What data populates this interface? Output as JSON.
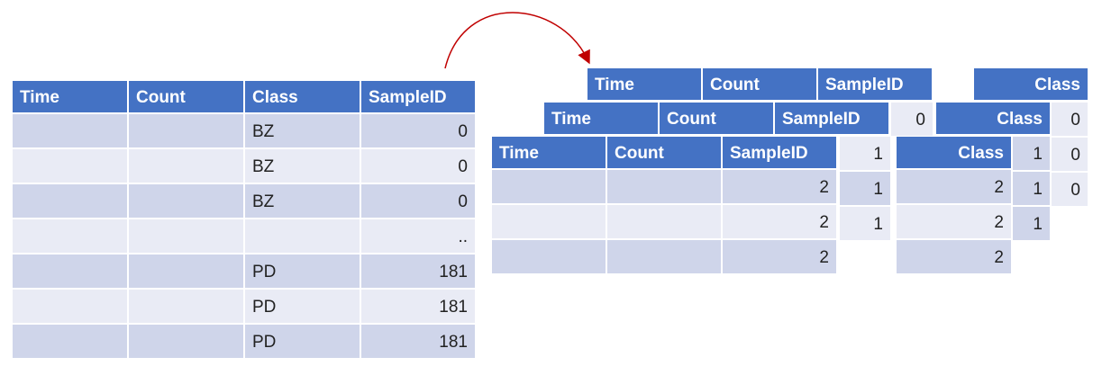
{
  "left_table": {
    "headers": [
      "Time",
      "Count",
      "Class",
      "SampleID"
    ],
    "rows": [
      [
        "",
        "",
        "BZ",
        "0"
      ],
      [
        "",
        "",
        "BZ",
        "0"
      ],
      [
        "",
        "",
        "BZ",
        "0"
      ],
      [
        "",
        "",
        "",
        ".."
      ],
      [
        "",
        "",
        "PD",
        "181"
      ],
      [
        "",
        "",
        "PD",
        "181"
      ],
      [
        "",
        "",
        "PD",
        "181"
      ]
    ]
  },
  "stack_tables": {
    "back": {
      "headers": [
        "Time",
        "Count",
        "SampleID"
      ],
      "sample_id": "0"
    },
    "middle": {
      "headers": [
        "Time",
        "Count",
        "SampleID"
      ],
      "sample_id": "1"
    },
    "front": {
      "headers": [
        "Time",
        "Count",
        "SampleID"
      ],
      "rows": [
        [
          "",
          "",
          "2"
        ],
        [
          "",
          "",
          "2"
        ],
        [
          "",
          "",
          "2"
        ]
      ],
      "side_values": [
        "1",
        "1",
        "1"
      ]
    }
  },
  "class_tables": {
    "back": {
      "header": "Class",
      "values": [
        "0",
        "0",
        "0"
      ]
    },
    "middle": {
      "header": "Class",
      "values": [
        "1",
        "1",
        "1"
      ]
    },
    "front": {
      "header": "Class",
      "values": [
        "2",
        "2",
        "2"
      ]
    }
  },
  "colors": {
    "header": "#4472c4",
    "row_dark": "#cfd5ea",
    "row_light": "#e9ebf5",
    "arrow": "#c00000"
  }
}
